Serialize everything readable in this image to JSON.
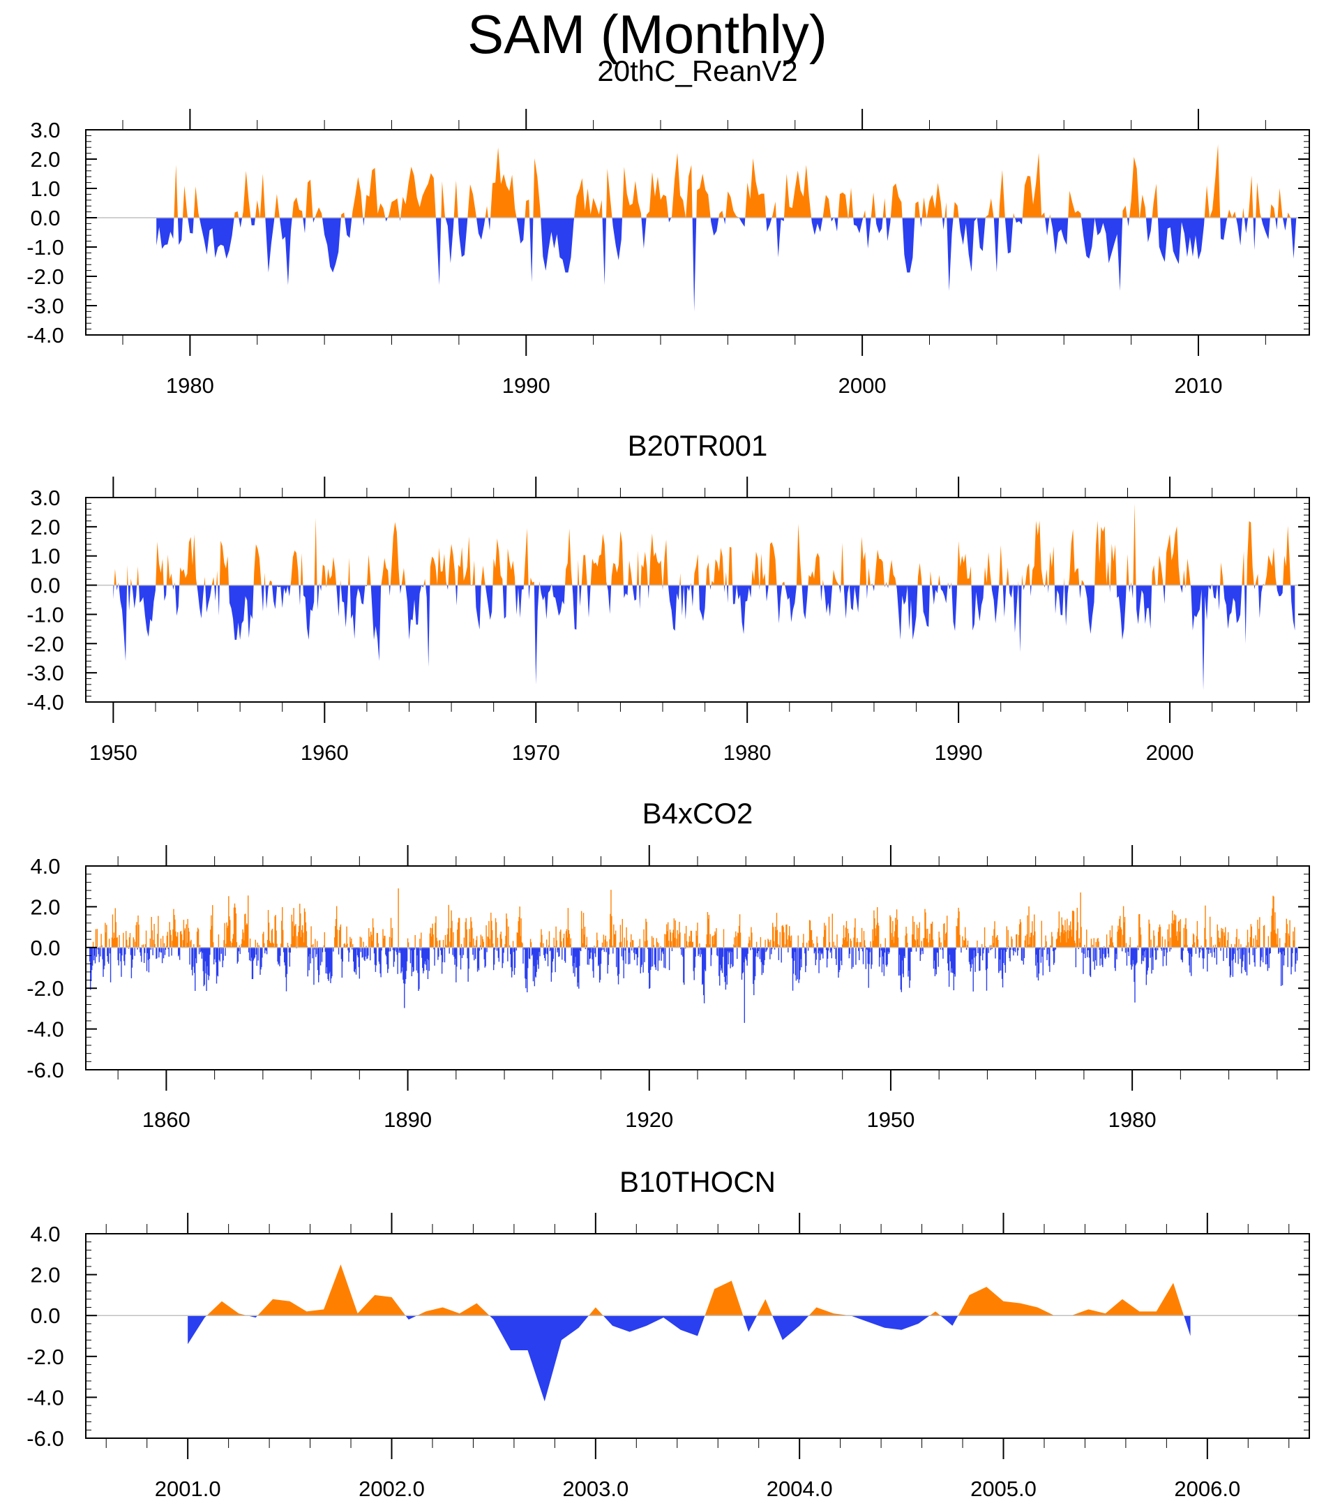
{
  "figure_title": "SAM (Monthly)",
  "colors": {
    "positive": "#ff8000",
    "negative": "#2a3ff0",
    "zero_line": "#c0c0c0",
    "frame": "#000000"
  },
  "chart_data": [
    {
      "type": "area",
      "title": "20thC_ReanV2",
      "ylim": [
        -4.0,
        3.0
      ],
      "yticks": [
        3.0,
        2.0,
        1.0,
        0.0,
        -1.0,
        -2.0,
        -3.0,
        -4.0
      ],
      "ytick_labels": [
        "3.0",
        "2.0",
        "1.0",
        "0.0",
        "-1.0",
        "-2.0",
        "-3.0",
        "-4.0"
      ],
      "xlim": [
        1976.9,
        2013.3
      ],
      "xticks": [
        1980,
        1990,
        2000,
        2010
      ],
      "xtick_labels": [
        "1980",
        "1990",
        "2000",
        "2010"
      ],
      "x_start": 1979.0,
      "x_end": 2012.9,
      "extremes": [
        [
          1979.6,
          1.8
        ],
        [
          1982.2,
          1.5
        ],
        [
          1982.9,
          -2.3
        ],
        [
          1985.5,
          1.7
        ],
        [
          1987.4,
          -2.3
        ],
        [
          1989.2,
          2.4
        ],
        [
          1990.2,
          -2.2
        ],
        [
          1992.3,
          -2.3
        ],
        [
          1995.0,
          -3.2
        ],
        [
          1998.3,
          1.8
        ],
        [
          2002.6,
          -2.5
        ],
        [
          2007.7,
          -2.5
        ],
        [
          2010.6,
          2.5
        ],
        [
          2011.7,
          -1.1
        ],
        [
          2012.8,
          -1.4
        ]
      ],
      "seed": 11
    },
    {
      "type": "area",
      "title": "B20TR001",
      "ylim": [
        -4.0,
        3.0
      ],
      "yticks": [
        3.0,
        2.0,
        1.0,
        0.0,
        -1.0,
        -2.0,
        -3.0,
        -4.0
      ],
      "ytick_labels": [
        "3.0",
        "2.0",
        "1.0",
        "0.0",
        "-1.0",
        "-2.0",
        "-3.0",
        "-4.0"
      ],
      "xlim": [
        1948.7,
        2006.6
      ],
      "xticks": [
        1950,
        1960,
        1970,
        1980,
        1990,
        2000
      ],
      "xtick_labels": [
        "1950",
        "1960",
        "1970",
        "1980",
        "1990",
        "2000"
      ],
      "x_start": 1950.0,
      "x_end": 2005.9,
      "extremes": [
        [
          1950.6,
          -2.6
        ],
        [
          1959.6,
          2.3
        ],
        [
          1962.6,
          -2.6
        ],
        [
          1964.9,
          -2.8
        ],
        [
          1970.0,
          -3.4
        ],
        [
          1982.4,
          2.1
        ],
        [
          1992.9,
          -2.3
        ],
        [
          1998.3,
          2.8
        ],
        [
          2001.6,
          -3.6
        ],
        [
          2003.6,
          -2.0
        ]
      ],
      "seed": 23
    },
    {
      "type": "area",
      "title": "B4xCO2",
      "ylim": [
        -6.0,
        4.0
      ],
      "yticks": [
        4.0,
        2.0,
        0.0,
        -2.0,
        -4.0,
        -6.0
      ],
      "ytick_labels": [
        "4.0",
        "2.0",
        "0.0",
        "-2.0",
        "-4.0",
        "-6.0"
      ],
      "xlim": [
        1850.0,
        2002.0
      ],
      "xticks": [
        1860,
        1890,
        1920,
        1950,
        1980
      ],
      "xtick_labels": [
        "1860",
        "1890",
        "1920",
        "1950",
        "1980"
      ],
      "x_start": 1850.5,
      "x_end": 2000.5,
      "extremes": [
        [
          1888.8,
          2.9
        ],
        [
          1931.8,
          -3.7
        ],
        [
          1973.6,
          2.7
        ],
        [
          1980.3,
          -2.7
        ]
      ],
      "seed": 37
    },
    {
      "type": "area",
      "title": "B10THOCN",
      "ylim": [
        -6.0,
        4.0
      ],
      "yticks": [
        4.0,
        2.0,
        0.0,
        -2.0,
        -4.0,
        -6.0
      ],
      "ytick_labels": [
        "4.0",
        "2.0",
        "0.0",
        "-2.0",
        "-4.0",
        "-6.0"
      ],
      "xlim": [
        2000.5,
        2006.5
      ],
      "xticks": [
        2001.0,
        2002.0,
        2003.0,
        2004.0,
        2005.0,
        2006.0
      ],
      "xtick_labels": [
        "2001.0",
        "2002.0",
        "2003.0",
        "2004.0",
        "2005.0",
        "2006.0"
      ],
      "x": [
        2001.0,
        2001.083,
        2001.167,
        2001.25,
        2001.333,
        2001.417,
        2001.5,
        2001.583,
        2001.667,
        2001.75,
        2001.833,
        2001.917,
        2002.0,
        2002.083,
        2002.167,
        2002.25,
        2002.333,
        2002.417,
        2002.5,
        2002.583,
        2002.667,
        2002.75,
        2002.833,
        2002.917,
        2003.0,
        2003.083,
        2003.167,
        2003.25,
        2003.333,
        2003.417,
        2003.5,
        2003.583,
        2003.667,
        2003.75,
        2003.833,
        2003.917,
        2004.0,
        2004.083,
        2004.167,
        2004.25,
        2004.333,
        2004.417,
        2004.5,
        2004.583,
        2004.667,
        2004.75,
        2004.833,
        2004.917,
        2005.0,
        2005.083,
        2005.167,
        2005.25,
        2005.333,
        2005.417,
        2005.5,
        2005.583,
        2005.667,
        2005.75,
        2005.833,
        2005.917
      ],
      "values": [
        -1.4,
        -0.1,
        0.7,
        0.1,
        -0.1,
        0.8,
        0.7,
        0.2,
        0.3,
        2.5,
        0.1,
        1.0,
        0.9,
        -0.2,
        0.2,
        0.4,
        0.1,
        0.6,
        -0.2,
        -1.7,
        -1.7,
        -4.2,
        -1.2,
        -0.6,
        0.4,
        -0.5,
        -0.8,
        -0.5,
        -0.1,
        -0.7,
        -1.0,
        1.3,
        1.7,
        -0.8,
        0.8,
        -1.2,
        -0.5,
        0.4,
        0.1,
        0.0,
        -0.3,
        -0.6,
        -0.7,
        -0.4,
        0.2,
        -0.5,
        1.0,
        1.4,
        0.7,
        0.6,
        0.4,
        0.0,
        0.0,
        0.3,
        0.1,
        0.8,
        0.2,
        0.2,
        1.6,
        -1.0
      ]
    }
  ]
}
